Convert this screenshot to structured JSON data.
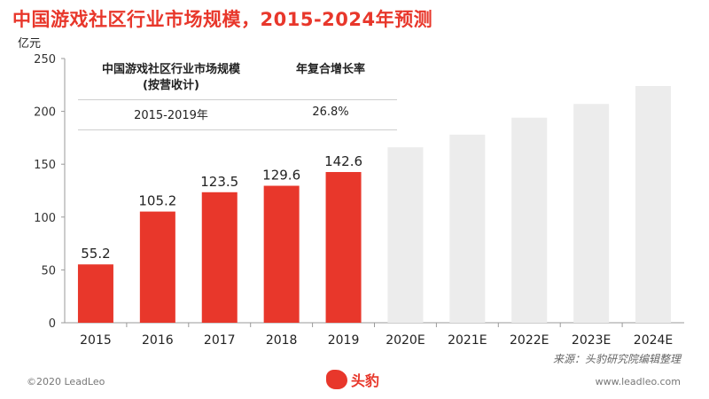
{
  "title": "中国游戏社区行业市场规模，2015-2024年预测",
  "unit": "亿元",
  "cagr": {
    "metric_label": "中国游戏社区行业市场规模",
    "metric_sublabel": "(按营收计)",
    "rate_label": "年复合增长率",
    "period": "2015-2019年",
    "rate": "26.8%"
  },
  "source": "来源：头豹研究院编辑整理",
  "footer": {
    "copyright": "©2020 LeadLeo",
    "website": "www.leadleo.com",
    "logo_text": "头豹"
  },
  "colors": {
    "actual": "#e8372b",
    "forecast": "#ececec",
    "title": "#e8372b"
  },
  "chart_data": {
    "type": "bar",
    "categories": [
      "2015",
      "2016",
      "2017",
      "2018",
      "2019",
      "2020E",
      "2021E",
      "2022E",
      "2023E",
      "2024E"
    ],
    "values": [
      55.2,
      105.2,
      123.5,
      129.6,
      142.6,
      166,
      178,
      194,
      207,
      224
    ],
    "labels": [
      "55.2",
      "105.2",
      "123.5",
      "129.6",
      "142.6",
      "",
      "",
      "",
      "",
      ""
    ],
    "forecast": [
      false,
      false,
      false,
      false,
      false,
      true,
      true,
      true,
      true,
      true
    ],
    "ylim": [
      0,
      250
    ],
    "yticks": [
      0,
      50,
      100,
      150,
      200,
      250
    ],
    "ylabel": "亿元",
    "grid": false
  }
}
